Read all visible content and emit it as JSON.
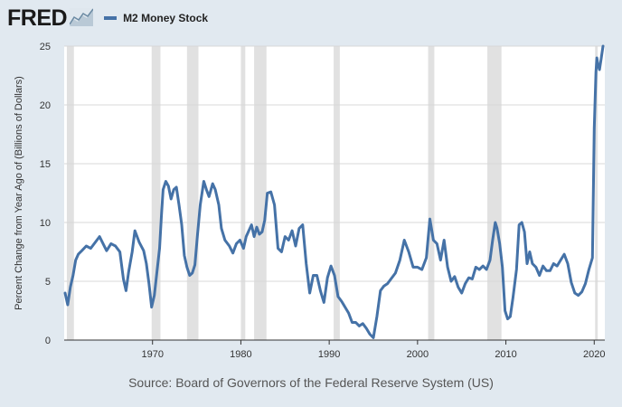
{
  "header": {
    "logo_text": "FRED",
    "logo_icon": "line-graph-icon"
  },
  "colors": {
    "series": "#4572a7",
    "recession": "#e1e1e1",
    "grid": "#d8d8d8",
    "background": "#e1e9f0",
    "plot_background": "#ffffff"
  },
  "source": "Source: Board of Governors of the Federal Reserve System (US)",
  "chart_data": {
    "type": "line",
    "title": "",
    "xlabel": "",
    "ylabel": "Percent Change from Year Ago of (Billions of Dollars)",
    "xlim": [
      1960,
      2021.2
    ],
    "ylim": [
      0,
      25
    ],
    "xticks": [
      1970,
      1980,
      1990,
      2000,
      2010,
      2020
    ],
    "yticks": [
      0,
      5,
      10,
      15,
      20,
      25
    ],
    "grid": "horizontal",
    "legend_position": "top-left",
    "recessions": [
      [
        1960.3,
        1961.1
      ],
      [
        1969.9,
        1970.9
      ],
      [
        1973.9,
        1975.2
      ],
      [
        1980.0,
        1980.5
      ],
      [
        1981.5,
        1982.9
      ],
      [
        1990.5,
        1991.2
      ],
      [
        2001.2,
        2001.9
      ],
      [
        2007.9,
        2009.5
      ],
      [
        2020.1,
        2020.4
      ]
    ],
    "series": [
      {
        "name": "M2 Money Stock",
        "x": [
          1960.1,
          1960.4,
          1960.7,
          1961.0,
          1961.3,
          1961.6,
          1962.0,
          1962.5,
          1963.0,
          1963.5,
          1964.0,
          1964.4,
          1964.8,
          1965.3,
          1965.8,
          1966.3,
          1966.7,
          1967.0,
          1967.3,
          1967.7,
          1968.0,
          1968.5,
          1969.0,
          1969.3,
          1969.6,
          1969.9,
          1970.2,
          1970.5,
          1970.8,
          1971.0,
          1971.2,
          1971.5,
          1971.8,
          1972.1,
          1972.4,
          1972.7,
          1973.0,
          1973.3,
          1973.6,
          1973.9,
          1974.2,
          1974.5,
          1974.8,
          1975.1,
          1975.4,
          1975.8,
          1976.1,
          1976.4,
          1976.8,
          1977.1,
          1977.5,
          1977.8,
          1978.2,
          1978.7,
          1979.1,
          1979.5,
          1979.9,
          1980.3,
          1980.6,
          1980.9,
          1981.2,
          1981.5,
          1981.8,
          1982.1,
          1982.4,
          1982.7,
          1983.0,
          1983.4,
          1983.8,
          1984.2,
          1984.6,
          1985.0,
          1985.4,
          1985.8,
          1986.2,
          1986.6,
          1987.0,
          1987.4,
          1987.8,
          1988.2,
          1988.6,
          1989.0,
          1989.4,
          1989.8,
          1990.2,
          1990.6,
          1991.0,
          1991.4,
          1991.8,
          1992.2,
          1992.6,
          1993.0,
          1993.4,
          1993.8,
          1994.2,
          1994.6,
          1995.0,
          1995.4,
          1995.8,
          1996.2,
          1996.6,
          1997.0,
          1997.5,
          1998.0,
          1998.5,
          1999.0,
          1999.5,
          2000.0,
          2000.5,
          2001.0,
          2001.4,
          2001.8,
          2002.2,
          2002.6,
          2003.0,
          2003.4,
          2003.8,
          2004.2,
          2004.6,
          2005.0,
          2005.4,
          2005.8,
          2006.2,
          2006.6,
          2007.0,
          2007.4,
          2007.8,
          2008.2,
          2008.5,
          2008.8,
          2009.0,
          2009.3,
          2009.6,
          2009.9,
          2010.2,
          2010.5,
          2010.8,
          2011.2,
          2011.5,
          2011.8,
          2012.1,
          2012.4,
          2012.7,
          2013.0,
          2013.4,
          2013.8,
          2014.2,
          2014.6,
          2015.0,
          2015.4,
          2015.8,
          2016.2,
          2016.6,
          2017.0,
          2017.4,
          2017.8,
          2018.2,
          2018.6,
          2019.0,
          2019.4,
          2019.8,
          2020.0,
          2020.2,
          2020.3,
          2020.4,
          2020.6,
          2020.8,
          2021.0
        ],
        "values": [
          4.0,
          3.0,
          4.5,
          5.5,
          6.8,
          7.3,
          7.6,
          8.0,
          7.8,
          8.3,
          8.8,
          8.2,
          7.6,
          8.2,
          8.0,
          7.5,
          5.2,
          4.2,
          5.8,
          7.5,
          9.3,
          8.3,
          7.6,
          6.5,
          4.8,
          2.8,
          3.8,
          5.8,
          7.8,
          10.5,
          12.8,
          13.5,
          13.1,
          12.0,
          12.8,
          13.0,
          11.5,
          9.8,
          7.2,
          6.2,
          5.5,
          5.7,
          6.4,
          9.0,
          11.5,
          13.5,
          12.8,
          12.2,
          13.3,
          12.8,
          11.5,
          9.5,
          8.5,
          8.0,
          7.4,
          8.2,
          8.5,
          7.8,
          8.8,
          9.3,
          9.8,
          8.8,
          9.6,
          9.0,
          9.2,
          10.2,
          12.5,
          12.6,
          11.5,
          7.8,
          7.5,
          8.8,
          8.5,
          9.3,
          8.0,
          9.5,
          9.8,
          6.5,
          4.0,
          5.5,
          5.5,
          4.2,
          3.2,
          5.3,
          6.3,
          5.5,
          3.7,
          3.3,
          2.8,
          2.3,
          1.5,
          1.5,
          1.2,
          1.4,
          1.0,
          0.5,
          0.2,
          2.0,
          4.2,
          4.6,
          4.8,
          5.2,
          5.7,
          6.8,
          8.5,
          7.5,
          6.2,
          6.2,
          6.0,
          7.0,
          10.3,
          8.5,
          8.2,
          6.8,
          8.5,
          6.2,
          5.0,
          5.4,
          4.5,
          4.0,
          4.8,
          5.3,
          5.2,
          6.2,
          6.0,
          6.3,
          6.0,
          6.8,
          8.5,
          10.0,
          9.5,
          8.2,
          6.2,
          2.5,
          1.8,
          2.0,
          3.6,
          6.0,
          9.8,
          10.0,
          9.2,
          6.5,
          7.5,
          6.5,
          6.2,
          5.5,
          6.3,
          5.9,
          5.9,
          6.5,
          6.3,
          6.8,
          7.3,
          6.5,
          4.9,
          4.0,
          3.8,
          4.1,
          4.8,
          6.0,
          7.0,
          18.0,
          22.8,
          24.0,
          23.5,
          23.0,
          24.0,
          25.0
        ]
      }
    ]
  }
}
